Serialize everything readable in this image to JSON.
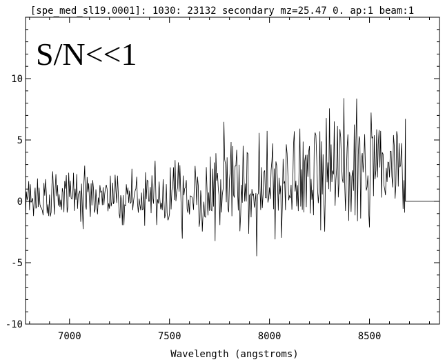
{
  "chart_data": {
    "type": "line",
    "title": "[spe_med_sl19.0001]: 1030: 23132 secondary mz=25.47 0. ap:1 beam:1",
    "annotation": "S/N<<1",
    "xlabel": "Wavelength (angstroms)",
    "ylabel": "",
    "xlim": [
      6780,
      8850
    ],
    "ylim": [
      -10,
      15
    ],
    "x_ticks": [
      7000,
      7500,
      8000,
      8500
    ],
    "x_tick_labels": [
      "7000",
      "7500",
      "8000",
      "8500"
    ],
    "y_ticks": [
      -10,
      -5,
      0,
      5,
      10
    ],
    "y_tick_labels": [
      "-10",
      "-5",
      "0",
      "5",
      "10"
    ],
    "grid": false,
    "series": [
      {
        "color": "#000000",
        "x_start": 6780,
        "x_step": 4,
        "x_signal_end": 8680,
        "x_flat_end": 8850,
        "flat_value": 0,
        "envelope_x": [
          6780,
          7000,
          7200,
          7400,
          7600,
          7800,
          8000,
          8200,
          8400,
          8600,
          8680
        ],
        "envelope_half_width": [
          3.2,
          3.4,
          3.7,
          4.2,
          4.8,
          5.4,
          5.9,
          6.4,
          6.9,
          7.2,
          7.0
        ],
        "trend_value": [
          0.3,
          0.2,
          0.3,
          0.2,
          0.5,
          0.9,
          1.4,
          2.0,
          2.5,
          2.9,
          2.5
        ]
      }
    ]
  }
}
